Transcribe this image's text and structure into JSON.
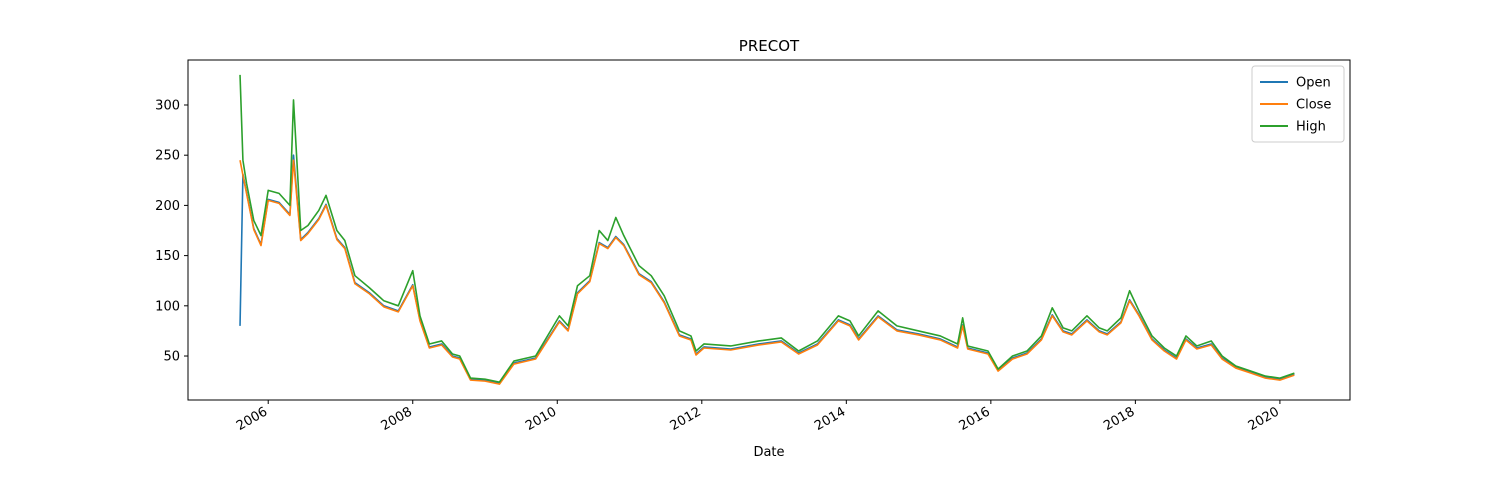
{
  "chart_data": {
    "type": "line",
    "title": "PRECOT",
    "xlabel": "Date",
    "x": [
      2005.61,
      2005.65,
      2005.7,
      2005.8,
      2005.9,
      2006.0,
      2006.15,
      2006.3,
      2006.35,
      2006.45,
      2006.55,
      2006.7,
      2006.8,
      2006.95,
      2007.06,
      2007.2,
      2007.4,
      2007.6,
      2007.8,
      2008.0,
      2008.1,
      2008.23,
      2008.4,
      2008.55,
      2008.65,
      2008.8,
      2009.0,
      2009.2,
      2009.4,
      2009.7,
      2010.03,
      2010.15,
      2010.28,
      2010.45,
      2010.58,
      2010.7,
      2010.81,
      2010.92,
      2011.13,
      2011.3,
      2011.48,
      2011.69,
      2011.85,
      2011.92,
      2012.03,
      2012.4,
      2012.79,
      2013.1,
      2013.34,
      2013.6,
      2013.89,
      2014.05,
      2014.17,
      2014.44,
      2014.7,
      2015.0,
      2015.3,
      2015.54,
      2015.61,
      2015.68,
      2015.96,
      2016.1,
      2016.3,
      2016.5,
      2016.7,
      2016.85,
      2017.0,
      2017.12,
      2017.33,
      2017.5,
      2017.61,
      2017.8,
      2017.92,
      2018.05,
      2018.23,
      2018.4,
      2018.57,
      2018.7,
      2018.85,
      2019.05,
      2019.2,
      2019.39,
      2019.6,
      2019.8,
      2020.0,
      2020.2
    ],
    "series": [
      {
        "name": "Open",
        "color": "#1f77b4",
        "values": [
          80,
          231,
          213,
          177,
          161,
          206,
          203,
          191,
          250,
          166,
          173,
          187,
          201,
          167,
          158,
          123,
          113,
          100,
          95,
          121,
          86,
          59,
          62,
          50,
          48,
          27,
          26,
          23,
          43,
          48,
          85,
          76,
          113,
          125,
          163,
          158,
          169,
          161,
          132,
          124,
          104,
          71,
          67,
          52,
          59,
          57,
          62,
          65,
          53,
          62,
          86,
          81,
          67,
          90,
          76,
          72,
          67,
          59,
          81,
          58,
          53,
          36,
          48,
          53,
          67,
          91,
          75,
          72,
          86,
          75,
          72,
          84,
          106,
          91,
          67,
          56,
          48,
          67,
          58,
          62,
          48,
          39,
          34,
          29,
          27,
          32
        ]
      },
      {
        "name": "Close",
        "color": "#ff7f0e",
        "values": [
          245,
          230,
          212,
          176,
          160,
          205,
          202,
          190,
          245,
          165,
          172,
          186,
          200,
          166,
          157,
          122,
          112,
          99,
          94,
          120,
          85,
          58,
          61,
          49,
          47,
          26,
          25,
          22,
          42,
          47,
          84,
          75,
          112,
          124,
          162,
          157,
          168,
          160,
          131,
          123,
          103,
          70,
          66,
          51,
          58,
          56,
          61,
          64,
          52,
          61,
          85,
          80,
          66,
          89,
          75,
          71,
          66,
          58,
          80,
          57,
          52,
          35,
          47,
          52,
          66,
          90,
          74,
          71,
          85,
          74,
          71,
          83,
          105,
          90,
          66,
          55,
          47,
          66,
          57,
          61,
          47,
          38,
          33,
          28,
          26,
          31
        ]
      },
      {
        "name": "High",
        "color": "#2ca02c",
        "values": [
          330,
          245,
          222,
          185,
          170,
          215,
          212,
          200,
          305,
          175,
          180,
          195,
          210,
          175,
          165,
          130,
          118,
          105,
          100,
          135,
          90,
          62,
          65,
          52,
          50,
          28,
          27,
          24,
          45,
          50,
          90,
          80,
          120,
          130,
          175,
          165,
          188,
          170,
          140,
          130,
          110,
          75,
          70,
          55,
          62,
          60,
          65,
          68,
          55,
          65,
          90,
          85,
          70,
          95,
          80,
          75,
          70,
          62,
          88,
          60,
          55,
          37,
          50,
          55,
          70,
          98,
          78,
          75,
          90,
          78,
          75,
          88,
          115,
          95,
          70,
          58,
          50,
          70,
          60,
          65,
          50,
          40,
          35,
          30,
          28,
          33
        ]
      }
    ],
    "xlim": [
      2004.89,
      2020.97
    ],
    "xticks": [
      2006,
      2008,
      2010,
      2012,
      2014,
      2016,
      2018,
      2020
    ],
    "ylim": [
      6.2,
      344.8
    ],
    "yticks": [
      50,
      100,
      150,
      200,
      250,
      300
    ],
    "legend": "upper right"
  }
}
